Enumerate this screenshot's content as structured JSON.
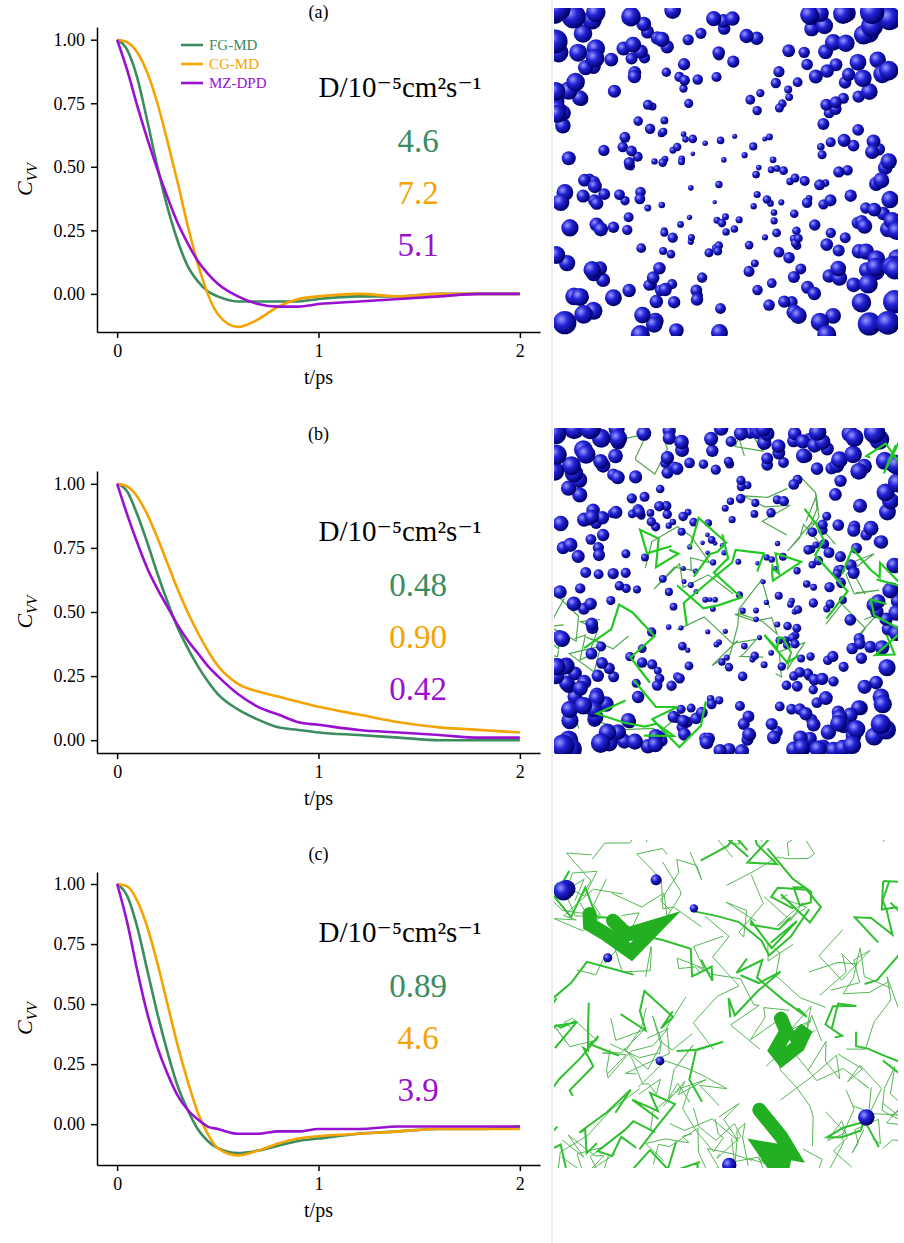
{
  "chart_data": [
    {
      "type": "line",
      "title": "(a)",
      "x_label": "t/ps",
      "y_label": "CVV",
      "x": [
        0,
        0.05,
        0.1,
        0.15,
        0.2,
        0.25,
        0.3,
        0.35,
        0.4,
        0.45,
        0.5,
        0.6,
        0.7,
        0.8,
        0.9,
        1.0,
        1.2,
        1.4,
        1.6,
        1.8,
        2.0
      ],
      "xlim": [
        -0.1,
        2.1
      ],
      "xticks": [
        0,
        1,
        2
      ],
      "ylim": [
        -0.15,
        1.05
      ],
      "yticks": [
        {
          "value": 0,
          "label": "0.00"
        },
        {
          "value": 0.25,
          "label": "0.25"
        },
        {
          "value": 0.5,
          "label": "0.50"
        },
        {
          "value": 0.75,
          "label": "0.75"
        },
        {
          "value": 1,
          "label": "1.00"
        }
      ],
      "legend": "upper left",
      "series": [
        {
          "name": "FG-MD",
          "color": "#3b8c5e",
          "values": [
            1.0,
            0.96,
            0.85,
            0.68,
            0.5,
            0.34,
            0.21,
            0.11,
            0.05,
            0.01,
            -0.01,
            -0.03,
            -0.03,
            -0.03,
            -0.03,
            -0.02,
            -0.01,
            -0.01,
            0.0,
            0.0,
            0.0
          ]
        },
        {
          "name": "CG-MD",
          "color": "#f5a300",
          "values": [
            1.0,
            0.99,
            0.95,
            0.87,
            0.75,
            0.6,
            0.44,
            0.27,
            0.12,
            0.0,
            -0.08,
            -0.13,
            -0.1,
            -0.05,
            -0.02,
            -0.01,
            0.0,
            -0.01,
            0.0,
            0.0,
            0.0
          ]
        },
        {
          "name": "MZ-DPD",
          "color": "#9a10d0",
          "values": [
            1.0,
            0.88,
            0.74,
            0.61,
            0.49,
            0.38,
            0.28,
            0.2,
            0.13,
            0.08,
            0.04,
            -0.01,
            -0.04,
            -0.05,
            -0.05,
            -0.04,
            -0.03,
            -0.02,
            -0.01,
            0.0,
            0.0
          ]
        }
      ],
      "diffusion": {
        "title": "D/10⁻⁵cm²s⁻¹",
        "values": [
          4.6,
          7.2,
          5.1
        ],
        "value_labels": [
          "4.6",
          "7.2",
          "5.1"
        ]
      }
    },
    {
      "type": "line",
      "title": "(b)",
      "x_label": "t/ps",
      "y_label": "CVV",
      "x": [
        0,
        0.05,
        0.1,
        0.15,
        0.2,
        0.25,
        0.3,
        0.35,
        0.4,
        0.45,
        0.5,
        0.6,
        0.7,
        0.8,
        0.9,
        1.0,
        1.2,
        1.4,
        1.6,
        1.8,
        2.0
      ],
      "xlim": [
        -0.1,
        2.1
      ],
      "xticks": [
        0,
        1,
        2
      ],
      "ylim": [
        -0.05,
        1.05
      ],
      "yticks": [
        {
          "value": 0,
          "label": "0.00"
        },
        {
          "value": 0.25,
          "label": "0.25"
        },
        {
          "value": 0.5,
          "label": "0.50"
        },
        {
          "value": 0.75,
          "label": "0.75"
        },
        {
          "value": 1,
          "label": "1.00"
        }
      ],
      "series": [
        {
          "color": "#3b8c5e",
          "values": [
            1.0,
            0.97,
            0.88,
            0.77,
            0.65,
            0.54,
            0.44,
            0.36,
            0.29,
            0.23,
            0.18,
            0.12,
            0.08,
            0.05,
            0.04,
            0.03,
            0.02,
            0.01,
            0.0,
            0.0,
            0.0
          ]
        },
        {
          "color": "#f5a300",
          "values": [
            1.0,
            0.99,
            0.95,
            0.88,
            0.79,
            0.69,
            0.59,
            0.5,
            0.42,
            0.35,
            0.29,
            0.22,
            0.19,
            0.17,
            0.15,
            0.13,
            0.1,
            0.07,
            0.05,
            0.04,
            0.03
          ]
        },
        {
          "color": "#9a10d0",
          "values": [
            1.0,
            0.88,
            0.77,
            0.67,
            0.59,
            0.52,
            0.45,
            0.39,
            0.34,
            0.29,
            0.25,
            0.18,
            0.13,
            0.1,
            0.07,
            0.06,
            0.04,
            0.03,
            0.02,
            0.01,
            0.01
          ]
        }
      ],
      "diffusion": {
        "title": "D/10⁻⁵cm²s⁻¹",
        "values": [
          0.48,
          0.9,
          0.42
        ],
        "value_labels": [
          "0.48",
          "0.90",
          "0.42"
        ]
      }
    },
    {
      "type": "line",
      "title": "(c)",
      "x_label": "t/ps",
      "y_label": "CVV",
      "x": [
        0,
        0.05,
        0.1,
        0.15,
        0.2,
        0.25,
        0.3,
        0.35,
        0.4,
        0.45,
        0.5,
        0.6,
        0.7,
        0.8,
        0.9,
        1.0,
        1.2,
        1.4,
        1.6,
        1.8,
        2.0
      ],
      "xlim": [
        -0.1,
        2.1
      ],
      "xticks": [
        0,
        1,
        2
      ],
      "ylim": [
        -0.17,
        1.05
      ],
      "yticks": [
        {
          "value": 0,
          "label": "0.00"
        },
        {
          "value": 0.25,
          "label": "0.25"
        },
        {
          "value": 0.5,
          "label": "0.50"
        },
        {
          "value": 0.75,
          "label": "0.75"
        },
        {
          "value": 1,
          "label": "1.00"
        }
      ],
      "series": [
        {
          "color": "#3b8c5e",
          "values": [
            1.0,
            0.95,
            0.82,
            0.64,
            0.46,
            0.3,
            0.16,
            0.06,
            -0.02,
            -0.07,
            -0.1,
            -0.12,
            -0.11,
            -0.09,
            -0.07,
            -0.06,
            -0.04,
            -0.03,
            -0.02,
            -0.02,
            -0.01
          ]
        },
        {
          "color": "#f5a300",
          "values": [
            1.0,
            0.99,
            0.93,
            0.82,
            0.67,
            0.5,
            0.33,
            0.18,
            0.05,
            -0.04,
            -0.1,
            -0.13,
            -0.11,
            -0.08,
            -0.06,
            -0.05,
            -0.04,
            -0.03,
            -0.02,
            -0.02,
            -0.02
          ]
        },
        {
          "color": "#9a10d0",
          "values": [
            1.0,
            0.84,
            0.64,
            0.46,
            0.32,
            0.21,
            0.12,
            0.06,
            0.02,
            -0.01,
            -0.02,
            -0.04,
            -0.04,
            -0.03,
            -0.03,
            -0.02,
            -0.02,
            -0.01,
            -0.01,
            -0.01,
            -0.01
          ]
        }
      ],
      "diffusion": {
        "title": "D/10⁻⁵cm²s⁻¹",
        "values": [
          0.89,
          4.6,
          3.9
        ],
        "value_labels": [
          "0.89",
          "4.6",
          "3.9"
        ]
      }
    }
  ]
}
